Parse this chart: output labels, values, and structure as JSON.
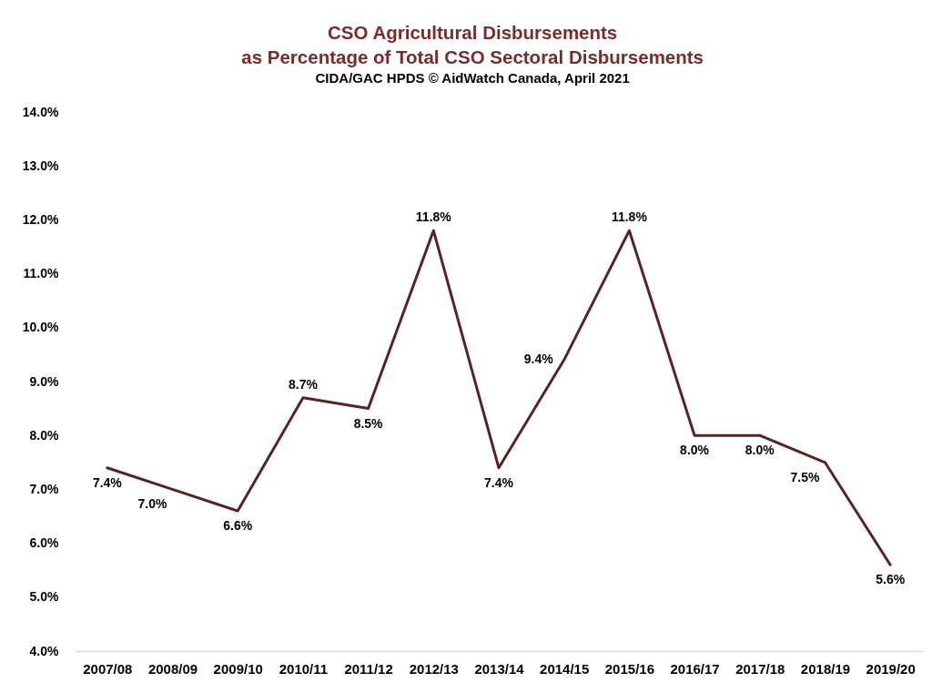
{
  "chart_data": {
    "type": "line",
    "title": "CSO Agricultural Disbursements\nas Percentage of Total CSO Sectoral Disbursements",
    "subtitle": "CIDA/GAC HPDS    © AidWatch Canada, April 2021",
    "categories": [
      "2007/08",
      "2008/09",
      "2009/10",
      "2010/11",
      "2011/12",
      "2012/13",
      "2013/14",
      "2014/15",
      "2015/16",
      "2016/17",
      "2017/18",
      "2018/19",
      "2019/20"
    ],
    "series": [
      {
        "color": "#5c2222",
        "values": [
          7.4,
          7.0,
          6.6,
          8.7,
          8.5,
          11.8,
          7.4,
          9.4,
          11.8,
          8.0,
          8.0,
          7.5,
          5.6
        ],
        "value_labels": [
          "7.4%",
          "7.0%",
          "6.6%",
          "8.7%",
          "8.5%",
          "11.8%",
          "7.4%",
          "9.4%",
          "11.8%",
          "8.0%",
          "8.0%",
          "7.5%",
          "5.6%"
        ]
      }
    ],
    "ylim": [
      4,
      14
    ],
    "yticks": [
      {
        "value": 4,
        "label": "4.0%"
      },
      {
        "value": 5,
        "label": "5.0%"
      },
      {
        "value": 6,
        "label": "6.0%"
      },
      {
        "value": 7,
        "label": "7.0%"
      },
      {
        "value": 8,
        "label": "8.0%"
      },
      {
        "value": 9,
        "label": "9.0%"
      },
      {
        "value": 10,
        "label": "10.0%"
      },
      {
        "value": 11,
        "label": "11.0%"
      },
      {
        "value": 12,
        "label": "12.0%"
      },
      {
        "value": 13,
        "label": "13.0%"
      },
      {
        "value": 14,
        "label": "14.0%"
      }
    ],
    "grid": false,
    "legend": false,
    "marker": "none",
    "line_style": "solid"
  }
}
